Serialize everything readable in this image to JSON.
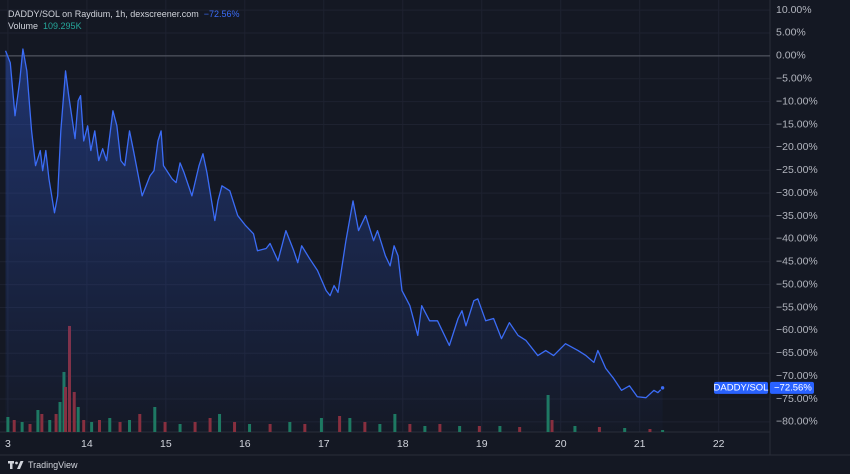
{
  "chart_data": {
    "type": "line",
    "title": "DADDY/SOL on Raydium, 1h, dexscreener.com",
    "title_change": "−72.56%",
    "volume_title": "Volume",
    "volume_value": "109.295K",
    "price_tag_name": "DADDY/SOL",
    "price_tag_value": "−72.56%",
    "brand": "TradingView",
    "line_color": "#3b6cf6",
    "baseline": 0,
    "grid": true,
    "xlim": [
      12.9,
      22.65
    ],
    "xticks": [
      {
        "value": 13,
        "label": "3"
      },
      14,
      15,
      16,
      17,
      18,
      19,
      20,
      21,
      22
    ],
    "ylim": [
      -82.2,
      12.2
    ],
    "yticks": [
      {
        "value": 10,
        "label": "10.00%"
      },
      {
        "value": 5,
        "label": "5.00%"
      },
      {
        "value": 0,
        "label": "0.00%"
      },
      {
        "value": -5,
        "label": "−5.00%"
      },
      {
        "value": -10,
        "label": "−10.00%"
      },
      {
        "value": -15,
        "label": "−15.00%"
      },
      {
        "value": -20,
        "label": "−20.00%"
      },
      {
        "value": -25,
        "label": "−25.00%"
      },
      {
        "value": -30,
        "label": "−30.00%"
      },
      {
        "value": -35,
        "label": "−35.00%"
      },
      {
        "value": -40,
        "label": "−40.00%"
      },
      {
        "value": -45,
        "label": "−45.00%"
      },
      {
        "value": -50,
        "label": "−50.00%"
      },
      {
        "value": -55,
        "label": "−55.00%"
      },
      {
        "value": -60,
        "label": "−60.00%"
      },
      {
        "value": -65,
        "label": "−65.00%"
      },
      {
        "value": -70,
        "label": "−70.00%"
      },
      {
        "value": -75,
        "label": "−75.00%"
      },
      {
        "value": -80,
        "label": "−80.00%"
      }
    ],
    "series": [
      {
        "name": "DADDY/SOL",
        "color": "#3b6cf6",
        "x": [
          12.97,
          13.03,
          13.09,
          13.15,
          13.19,
          13.24,
          13.3,
          13.35,
          13.41,
          13.44,
          13.48,
          13.52,
          13.59,
          13.63,
          13.67,
          13.73,
          13.77,
          13.85,
          13.89,
          13.92,
          13.96,
          14.01,
          14.05,
          14.1,
          14.15,
          14.2,
          14.25,
          14.33,
          14.38,
          14.43,
          14.48,
          14.54,
          14.59,
          14.7,
          14.8,
          14.85,
          14.9,
          14.94,
          14.97,
          15.08,
          15.13,
          15.18,
          15.23,
          15.33,
          15.42,
          15.47,
          15.52,
          15.62,
          15.66,
          15.71,
          15.81,
          15.91,
          16.01,
          16.11,
          16.16,
          16.27,
          16.32,
          16.42,
          16.52,
          16.62,
          16.67,
          16.72,
          16.82,
          16.92,
          17.03,
          17.08,
          17.13,
          17.18,
          17.28,
          17.37,
          17.44,
          17.53,
          17.63,
          17.68,
          17.78,
          17.84,
          17.89,
          17.94,
          17.99,
          18.09,
          18.19,
          18.24,
          18.34,
          18.44,
          18.59,
          18.7,
          18.75,
          18.8,
          18.9,
          18.95,
          19.05,
          19.15,
          19.25,
          19.35,
          19.46,
          19.56,
          19.71,
          19.81,
          19.91,
          20.06,
          20.22,
          20.32,
          20.42,
          20.47,
          20.57,
          20.67,
          20.77,
          20.87,
          20.97,
          21.08,
          21.18,
          21.23,
          21.29
        ],
        "values": [
          1.1,
          -1.5,
          -13.1,
          -5.5,
          1.5,
          -3.3,
          -16.4,
          -24.0,
          -20.7,
          -25.1,
          -20.7,
          -26.9,
          -34.3,
          -30.6,
          -16.4,
          -3.3,
          -8.7,
          -18.1,
          -9.8,
          -8.7,
          -18.6,
          -15.3,
          -20.7,
          -16.4,
          -22.9,
          -20.3,
          -22.9,
          -12.0,
          -15.3,
          -22.9,
          -24.0,
          -16.4,
          -20.7,
          -30.6,
          -26.2,
          -25.1,
          -18.6,
          -16.4,
          -24.0,
          -26.9,
          -27.7,
          -23.4,
          -25.5,
          -30.6,
          -24.0,
          -21.4,
          -25.5,
          -36.0,
          -31.7,
          -28.4,
          -29.5,
          -34.9,
          -37.1,
          -38.9,
          -42.6,
          -42.1,
          -41.0,
          -44.8,
          -38.2,
          -42.6,
          -45.2,
          -41.5,
          -44.3,
          -46.9,
          -51.3,
          -52.4,
          -50.2,
          -51.7,
          -40.4,
          -31.7,
          -38.2,
          -34.9,
          -40.4,
          -38.2,
          -43.7,
          -45.9,
          -41.5,
          -43.7,
          -51.3,
          -54.6,
          -61.1,
          -54.6,
          -57.9,
          -57.9,
          -63.3,
          -57.4,
          -55.7,
          -59.0,
          -53.5,
          -53.1,
          -57.9,
          -57.4,
          -61.8,
          -58.3,
          -61.1,
          -62.2,
          -65.5,
          -64.4,
          -65.5,
          -62.9,
          -64.4,
          -65.5,
          -67.0,
          -64.4,
          -68.3,
          -70.5,
          -73.1,
          -72.1,
          -74.5,
          -74.7,
          -73.1,
          -73.6,
          -72.56
        ]
      }
    ],
    "volume": {
      "name": "Volume",
      "axis": "y2",
      "x": [
        13.0,
        13.08,
        13.18,
        13.28,
        13.38,
        13.43,
        13.53,
        13.61,
        13.66,
        13.71,
        13.73,
        13.78,
        13.84,
        13.89,
        13.96,
        14.06,
        14.16,
        14.29,
        14.42,
        14.54,
        14.67,
        14.86,
        14.99,
        15.18,
        15.37,
        15.56,
        15.68,
        15.87,
        16.06,
        16.32,
        16.57,
        16.76,
        16.97,
        17.2,
        17.33,
        17.52,
        17.71,
        17.9,
        18.09,
        18.28,
        18.47,
        18.72,
        18.97,
        19.23,
        19.48,
        19.84,
        19.89,
        20.18,
        20.49,
        20.81,
        21.13,
        21.29
      ],
      "values": [
        828,
        662,
        552,
        442,
        1214,
        994,
        662,
        994,
        1656,
        3312,
        2484,
        5851,
        2208,
        1380,
        662,
        552,
        662,
        773,
        552,
        662,
        994,
        1380,
        552,
        442,
        552,
        773,
        994,
        552,
        442,
        442,
        552,
        442,
        773,
        883,
        773,
        552,
        442,
        994,
        442,
        331,
        442,
        331,
        331,
        331,
        276,
        2042,
        662,
        331,
        276,
        221,
        166,
        109.295
      ],
      "colors": [
        "#1d7a5f",
        "#8a2e3b",
        "#1d7a5f",
        "#8a2e3b",
        "#1d7a5f",
        "#8a2e3b",
        "#1d7a5f",
        "#8a2e3b",
        "#1d7a5f",
        "#1d7a5f",
        "#8a2e3b",
        "#8a2e3b",
        "#8a2e3b",
        "#1d7a5f",
        "#8a2e3b",
        "#1d7a5f",
        "#8a2e3b",
        "#1d7a5f",
        "#8a2e3b",
        "#1d7a5f",
        "#8a2e3b",
        "#1d7a5f",
        "#8a2e3b",
        "#1d7a5f",
        "#8a2e3b",
        "#8a2e3b",
        "#1d7a5f",
        "#8a2e3b",
        "#1d7a5f",
        "#8a2e3b",
        "#1d7a5f",
        "#8a2e3b",
        "#1d7a5f",
        "#8a2e3b",
        "#1d7a5f",
        "#8a2e3b",
        "#1d7a5f",
        "#1d7a5f",
        "#8a2e3b",
        "#1d7a5f",
        "#8a2e3b",
        "#1d7a5f",
        "#8a2e3b",
        "#1d7a5f",
        "#8a2e3b",
        "#1d7a5f",
        "#8a2e3b",
        "#1d7a5f",
        "#8a2e3b",
        "#1d7a5f",
        "#8a2e3b",
        "#1d7a5f"
      ]
    },
    "y2lim": [
      0,
      8000
    ]
  }
}
